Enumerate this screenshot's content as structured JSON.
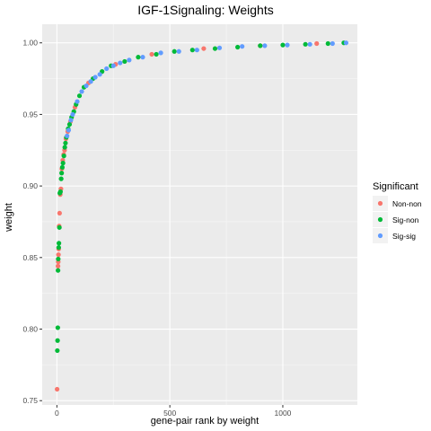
{
  "chart_data": {
    "type": "scatter",
    "title": "IGF-1Signaling: Weights",
    "xlabel": "gene-pair rank by weight",
    "ylabel": "weight",
    "xlim": [
      -65,
      1330
    ],
    "ylim": [
      0.747,
      1.013
    ],
    "x_ticks": [
      0,
      500,
      1000
    ],
    "y_ticks": [
      0.75,
      0.8,
      0.85,
      0.9,
      0.95,
      1.0
    ],
    "y_tick_labels": [
      "0.75",
      "0.80",
      "0.85",
      "0.90",
      "0.95",
      "1.00"
    ],
    "grid": true,
    "legend": {
      "title": "Significant",
      "position": "right"
    },
    "series": [
      {
        "name": "Non-non",
        "color": "#F8766D",
        "points": [
          [
            1,
            0.758
          ],
          [
            5,
            0.844
          ],
          [
            6,
            0.847
          ],
          [
            7,
            0.852
          ],
          [
            8,
            0.856
          ],
          [
            10,
            0.872
          ],
          [
            12,
            0.881
          ],
          [
            15,
            0.894
          ],
          [
            18,
            0.898
          ],
          [
            22,
            0.912
          ],
          [
            26,
            0.918
          ],
          [
            30,
            0.922
          ],
          [
            34,
            0.925
          ],
          [
            40,
            0.933
          ],
          [
            48,
            0.938
          ],
          [
            60,
            0.945
          ],
          [
            80,
            0.955
          ],
          [
            140,
            0.972
          ],
          [
            260,
            0.985
          ],
          [
            420,
            0.992
          ],
          [
            650,
            0.996
          ],
          [
            900,
            0.998
          ],
          [
            1150,
            0.9995
          ]
        ]
      },
      {
        "name": "Sig-non",
        "color": "#00BA38",
        "points": [
          [
            2,
            0.785
          ],
          [
            3,
            0.792
          ],
          [
            4,
            0.801
          ],
          [
            5,
            0.841
          ],
          [
            6,
            0.849
          ],
          [
            8,
            0.857
          ],
          [
            9,
            0.86
          ],
          [
            11,
            0.871
          ],
          [
            13,
            0.895
          ],
          [
            16,
            0.896
          ],
          [
            19,
            0.905
          ],
          [
            21,
            0.909
          ],
          [
            24,
            0.913
          ],
          [
            27,
            0.916
          ],
          [
            31,
            0.921
          ],
          [
            35,
            0.927
          ],
          [
            38,
            0.93
          ],
          [
            42,
            0.934
          ],
          [
            50,
            0.94
          ],
          [
            56,
            0.943
          ],
          [
            65,
            0.948
          ],
          [
            75,
            0.952
          ],
          [
            85,
            0.957
          ],
          [
            100,
            0.963
          ],
          [
            120,
            0.969
          ],
          [
            160,
            0.975
          ],
          [
            200,
            0.98
          ],
          [
            240,
            0.984
          ],
          [
            300,
            0.987
          ],
          [
            360,
            0.99
          ],
          [
            440,
            0.992
          ],
          [
            520,
            0.994
          ],
          [
            600,
            0.995
          ],
          [
            700,
            0.996
          ],
          [
            800,
            0.997
          ],
          [
            900,
            0.998
          ],
          [
            1000,
            0.9985
          ],
          [
            1100,
            0.999
          ],
          [
            1200,
            0.9995
          ],
          [
            1270,
            1.0
          ]
        ]
      },
      {
        "name": "Sig-sig",
        "color": "#619CFF",
        "points": [
          [
            45,
            0.935
          ],
          [
            52,
            0.939
          ],
          [
            62,
            0.946
          ],
          [
            70,
            0.95
          ],
          [
            90,
            0.959
          ],
          [
            110,
            0.966
          ],
          [
            130,
            0.97
          ],
          [
            150,
            0.973
          ],
          [
            170,
            0.976
          ],
          [
            190,
            0.978
          ],
          [
            220,
            0.982
          ],
          [
            250,
            0.984
          ],
          [
            280,
            0.986
          ],
          [
            320,
            0.988
          ],
          [
            380,
            0.99
          ],
          [
            460,
            0.993
          ],
          [
            540,
            0.994
          ],
          [
            620,
            0.995
          ],
          [
            720,
            0.9965
          ],
          [
            820,
            0.9975
          ],
          [
            920,
            0.998
          ],
          [
            1020,
            0.9985
          ],
          [
            1120,
            0.999
          ],
          [
            1220,
            0.9995
          ],
          [
            1280,
            1.0
          ]
        ]
      }
    ]
  }
}
